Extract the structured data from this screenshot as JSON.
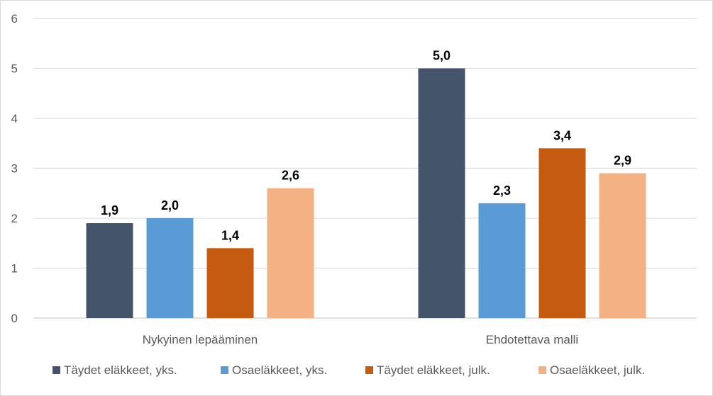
{
  "chart_data": {
    "type": "bar",
    "categories": [
      "Nykyinen lepääminen",
      "Ehdotettava malli"
    ],
    "series": [
      {
        "name": "Täydet eläkkeet, yks.",
        "color": "#44546A",
        "values": [
          1.9,
          5.0
        ],
        "labels": [
          "1,9",
          "5,0"
        ]
      },
      {
        "name": "Osaeläkkeet, yks.",
        "color": "#5B9BD5",
        "values": [
          2.0,
          2.3
        ],
        "labels": [
          "2,0",
          "2,3"
        ]
      },
      {
        "name": "Täydet eläkkeet, julk.",
        "color": "#C55A11",
        "values": [
          1.4,
          3.4
        ],
        "labels": [
          "1,4",
          "3,4"
        ]
      },
      {
        "name": "Osaeläkkeet, julk.",
        "color": "#F4B183",
        "values": [
          2.6,
          2.9
        ],
        "labels": [
          "2,6",
          "2,9"
        ]
      }
    ],
    "y_ticks": [
      "0",
      "1",
      "2",
      "3",
      "4",
      "5",
      "6"
    ],
    "ylim": [
      0,
      6
    ],
    "grid": true,
    "legend_position": "bottom"
  }
}
